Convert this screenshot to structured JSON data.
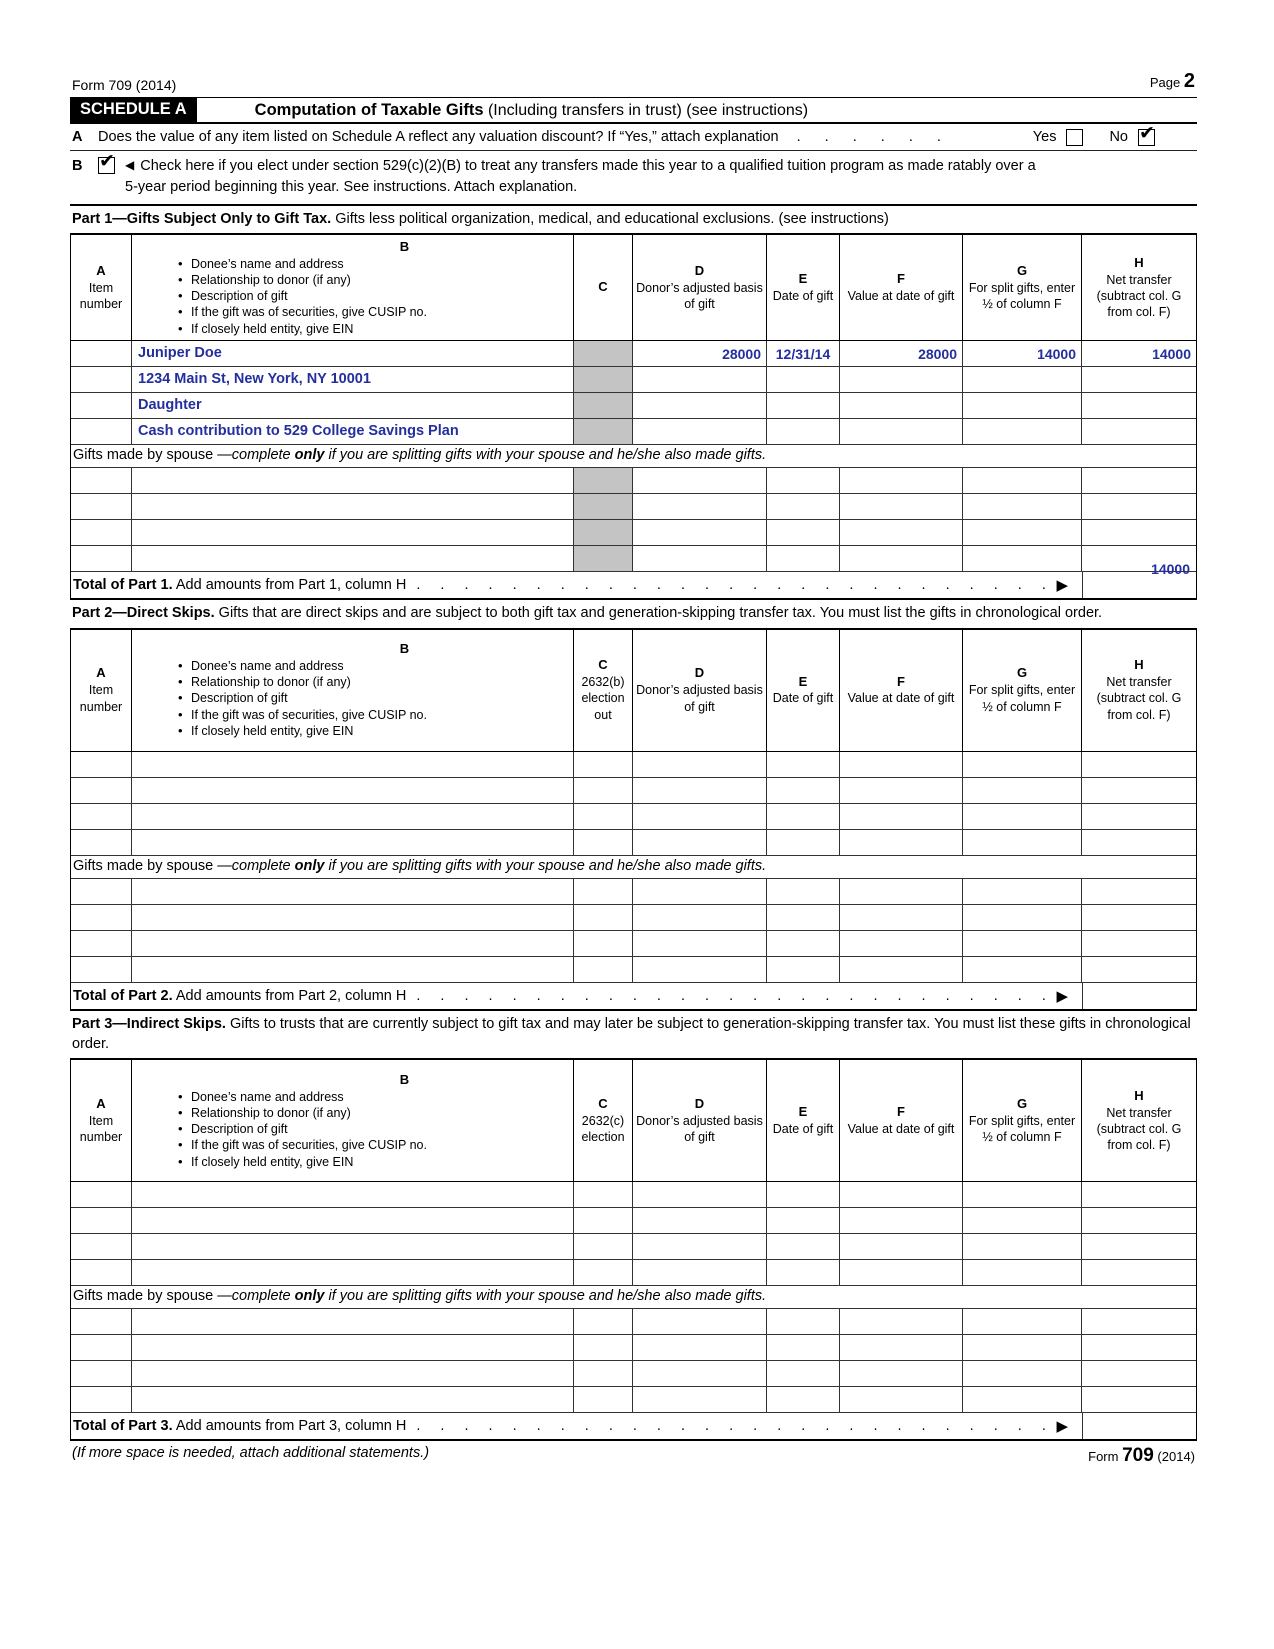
{
  "page": {
    "form_id": "Form 709 (2014)",
    "page_label": "Page",
    "page_number": "2",
    "footer_note": "(If more space is needed, attach additional statements.)",
    "footer_form_prefix": "Form",
    "footer_form_number": "709",
    "footer_form_year": "(2014)"
  },
  "schedule": {
    "label": "SCHEDULE A",
    "title_bold": "Computation of Taxable Gifts",
    "title_rest": " (Including transfers in trust) (see instructions)"
  },
  "line_a": {
    "letter": "A",
    "text": "Does the value of any item listed on Schedule A reflect any valuation discount? If “Yes,” attach explanation",
    "dots": ". . . . . .",
    "yes_label": "Yes",
    "no_label": "No",
    "checkmark": "✔"
  },
  "line_b": {
    "letter": "B",
    "checkmark": "✔",
    "arrow": "◀",
    "text_line1": "Check here if you elect under section 529(c)(2)(B) to treat any transfers made this year to a qualified tuition program as made ratably over a",
    "text_line2": "5-year period beginning this year. See instructions. Attach explanation."
  },
  "columns": {
    "a_letter": "A",
    "a_label": "Item number",
    "b_letter": "B",
    "b_bullets": [
      "Donee’s name and address",
      "Relationship to donor (if any)",
      "Description of gift",
      "If the gift was of securities, give CUSIP no.",
      "If closely held entity, give EIN"
    ],
    "c_letter": "C",
    "d_letter": "D",
    "d_label": "Donor’s adjusted basis of gift",
    "e_letter": "E",
    "e_label": "Date of gift",
    "f_letter": "F",
    "f_label": "Value at date of gift",
    "g_letter": "G",
    "g_label": "For split gifts, enter ½ of column F",
    "h_letter": "H",
    "h_label": "Net transfer (subtract col. G from col. F)"
  },
  "spouse_note": {
    "prefix": "Gifts made by spouse ",
    "italic1": "—complete ",
    "bold_word": "only",
    "italic2": " if you are splitting gifts with your spouse and he/she also made gifts."
  },
  "part1": {
    "title_bold": "Part 1—Gifts Subject Only to Gift Tax.",
    "title_rest": " Gifts less political organization, medical, and educational exclusions. (see instructions)",
    "entries": [
      {
        "b": "Juniper Doe",
        "d": "28000",
        "e": "12/31/14",
        "f": "28000",
        "g": "14000",
        "h": "14000"
      },
      {
        "b": "1234 Main St, New York, NY 10001"
      },
      {
        "b": "Daughter"
      },
      {
        "b": "Cash contribution to 529 College Savings Plan"
      }
    ],
    "total_bold": "Total of Part 1.",
    "total_rest": " Add amounts from Part 1, column H",
    "total_value": "14000",
    "arrow": "▶"
  },
  "part2": {
    "title_bold": "Part 2—Direct Skips.",
    "title_rest": " Gifts that are direct skips and are subject to both gift tax and generation-skipping transfer tax. You must list the gifts in chronological order.",
    "c_sublabel": "2632(b) election out",
    "total_bold": "Total of Part 2.",
    "total_rest": " Add amounts from Part 2, column H",
    "arrow": "▶"
  },
  "part3": {
    "title_bold": "Part 3—Indirect Skips.",
    "title_rest": " Gifts to trusts that are currently subject to gift tax and may later be subject to generation-skipping transfer tax. You must list these gifts in chronological order.",
    "c_sublabel": "2632(c) election",
    "total_bold": "Total of Part 3.",
    "total_rest": " Add amounts from Part 3, column H",
    "arrow": "▶"
  },
  "leader_dots": ". . . . . . . . . . . . . . . . . . . . . . . . . . . . . . . . . . . .",
  "colors": {
    "entry_blue": "#232f9e",
    "shade_gray": "#c4c4c4"
  }
}
